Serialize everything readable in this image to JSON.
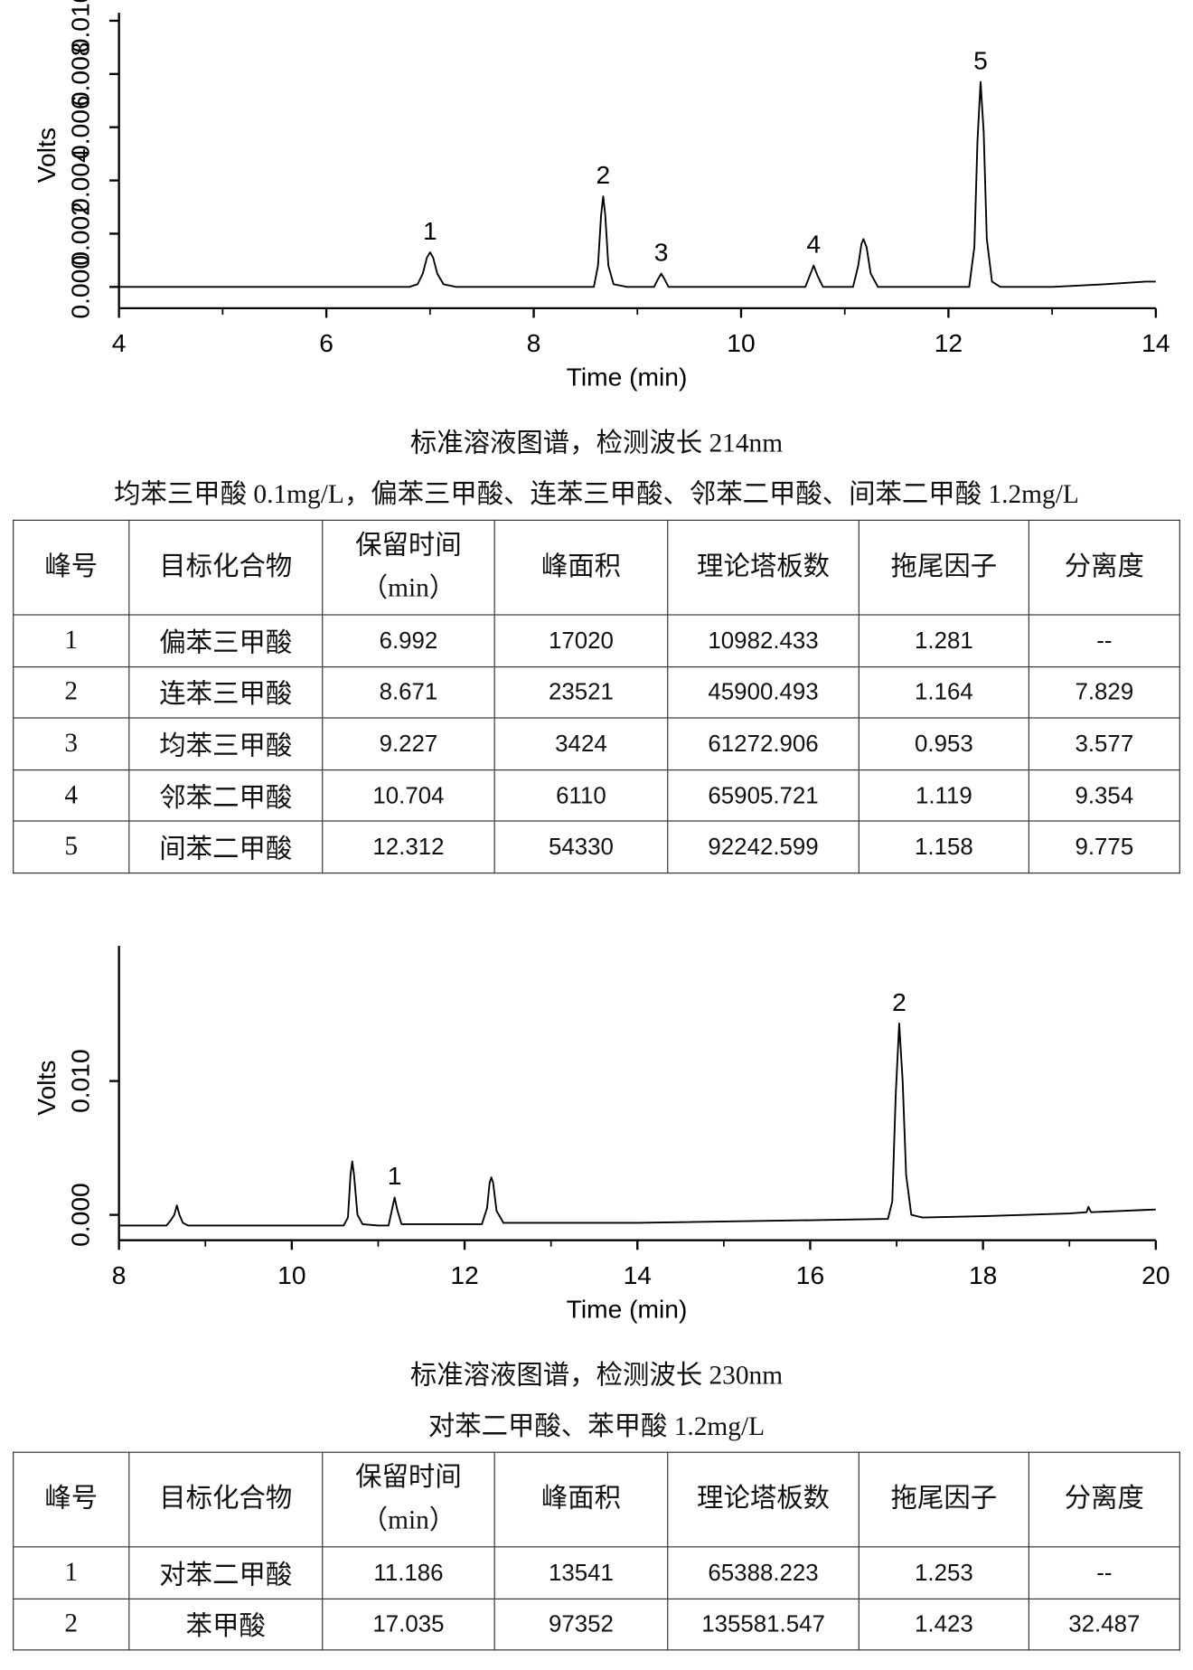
{
  "chart_data": [
    {
      "type": "line",
      "xlabel": "Time (min)",
      "ylabel": "Volts",
      "xlim": [
        4,
        14
      ],
      "xticks": [
        4,
        6,
        8,
        10,
        12,
        14
      ],
      "xminorticks": [
        5,
        7,
        9,
        11,
        13
      ],
      "ylim": [
        -0.0008,
        0.0103
      ],
      "yticks": [
        {
          "value": 0,
          "label": "0.000"
        },
        {
          "value": 0.002,
          "label": "0.002"
        },
        {
          "value": 0.004,
          "label": "0.004"
        },
        {
          "value": 0.006,
          "label": "0.006"
        },
        {
          "value": 0.008,
          "label": "0.008"
        },
        {
          "value": 0.01,
          "label": "0.010"
        }
      ],
      "x": [
        4.0,
        5.0,
        6.0,
        6.8,
        6.88,
        6.93,
        6.97,
        7.0,
        7.03,
        7.07,
        7.13,
        7.25,
        8.0,
        8.58,
        8.62,
        8.65,
        8.67,
        8.69,
        8.72,
        8.77,
        8.9,
        9.16,
        9.2,
        9.23,
        9.26,
        9.3,
        10.0,
        10.62,
        10.66,
        10.7,
        10.74,
        10.79,
        11.08,
        11.13,
        11.16,
        11.18,
        11.21,
        11.25,
        11.32,
        12.0,
        12.2,
        12.25,
        12.28,
        12.31,
        12.34,
        12.37,
        12.42,
        12.5,
        13.0,
        13.5,
        13.9,
        14.0
      ],
      "series": [
        {
          "color": "#000000",
          "values": [
            0.0,
            0.0,
            0.0,
            0.0,
            0.0001,
            0.0005,
            0.0011,
            0.0013,
            0.0011,
            0.0005,
            0.0001,
            0.0,
            0.0,
            0.0,
            0.0008,
            0.0027,
            0.0034,
            0.0027,
            0.0008,
            0.0001,
            0.0,
            0.0,
            0.0003,
            0.0005,
            0.0003,
            0.0,
            0.0,
            0.0,
            0.0004,
            0.0008,
            0.0004,
            0.0,
            0.0,
            0.0008,
            0.0016,
            0.0018,
            0.0015,
            0.0005,
            0.0,
            0.0,
            0.0,
            0.0015,
            0.0055,
            0.0077,
            0.0058,
            0.0018,
            0.0002,
            0.0,
            0.0,
            0.0001,
            0.0002,
            0.0002
          ]
        }
      ],
      "annotations": [
        {
          "text": "1",
          "x": 7.0
        },
        {
          "text": "2",
          "x": 8.67
        },
        {
          "text": "3",
          "x": 9.23
        },
        {
          "text": "4",
          "x": 10.7
        },
        {
          "text": "5",
          "x": 12.31
        }
      ]
    },
    {
      "type": "line",
      "xlabel": "Time (min)",
      "ylabel": "Volts",
      "xlim": [
        8,
        20
      ],
      "xticks": [
        8,
        10,
        12,
        14,
        16,
        18,
        20
      ],
      "xminorticks": [
        9,
        11,
        13,
        15,
        17,
        19
      ],
      "ylim": [
        -0.0019,
        0.0201
      ],
      "yticks": [
        {
          "value": 0,
          "label": "0.000"
        },
        {
          "value": 0.01,
          "label": "0.010"
        }
      ],
      "x": [
        8.0,
        8.55,
        8.6,
        8.64,
        8.67,
        8.7,
        8.74,
        8.8,
        9.2,
        10.0,
        10.6,
        10.65,
        10.68,
        10.7,
        10.72,
        10.76,
        10.82,
        11.0,
        11.12,
        11.16,
        11.19,
        11.22,
        11.27,
        12.2,
        12.26,
        12.29,
        12.31,
        12.33,
        12.37,
        12.45,
        14.0,
        16.0,
        16.9,
        16.95,
        16.99,
        17.03,
        17.07,
        17.11,
        17.17,
        17.3,
        18.0,
        19.0,
        19.2,
        19.22,
        19.25,
        20.0
      ],
      "series": [
        {
          "color": "#000000",
          "values": [
            -0.0008,
            -0.0008,
            -0.0004,
            0.0,
            0.0007,
            0.0,
            -0.0006,
            -0.0008,
            -0.0008,
            -0.0008,
            -0.0008,
            -0.0002,
            0.003,
            0.004,
            0.003,
            0.0,
            -0.0007,
            -0.0008,
            -0.0008,
            0.0004,
            0.0013,
            0.0004,
            -0.0007,
            -0.0007,
            0.0005,
            0.0024,
            0.0028,
            0.0024,
            0.0003,
            -0.0006,
            -0.0006,
            -0.0004,
            -0.0003,
            0.001,
            0.009,
            0.0143,
            0.01,
            0.003,
            0.0,
            -0.0002,
            -0.0001,
            0.0001,
            0.0002,
            0.0006,
            0.0002,
            0.0004
          ]
        }
      ],
      "annotations": [
        {
          "text": "1",
          "x": 11.19
        },
        {
          "text": "2",
          "x": 17.03
        }
      ]
    }
  ],
  "captions": [
    [
      "标准溶液图谱，检测波长 214nm",
      "均苯三甲酸 0.1mg/L，偏苯三甲酸、连苯三甲酸、邻苯二甲酸、间苯二甲酸 1.2mg/L"
    ],
    [
      "标准溶液图谱，检测波长 230nm",
      "对苯二甲酸、苯甲酸 1.2mg/L"
    ]
  ],
  "tables": [
    {
      "header": [
        "峰号",
        "目标化合物",
        "保留时间\n（min）",
        "峰面积",
        "理论塔板数",
        "拖尾因子",
        "分离度"
      ],
      "rows": [
        [
          1,
          "偏苯三甲酸",
          6.992,
          17020,
          10982.433,
          1.281,
          "--"
        ],
        [
          2,
          "连苯三甲酸",
          8.671,
          23521,
          45900.493,
          1.164,
          7.829
        ],
        [
          3,
          "均苯三甲酸",
          9.227,
          3424,
          61272.906,
          0.953,
          3.577
        ],
        [
          4,
          "邻苯二甲酸",
          10.704,
          6110,
          65905.721,
          1.119,
          9.354
        ],
        [
          5,
          "间苯二甲酸",
          12.312,
          54330,
          92242.599,
          1.158,
          9.775
        ]
      ]
    },
    {
      "header": [
        "峰号",
        "目标化合物",
        "保留时间\n（min）",
        "峰面积",
        "理论塔板数",
        "拖尾因子",
        "分离度"
      ],
      "rows": [
        [
          1,
          "对苯二甲酸",
          11.186,
          13541,
          65388.223,
          1.253,
          "--"
        ],
        [
          2,
          "苯甲酸",
          17.035,
          97352,
          135581.547,
          1.423,
          32.487
        ]
      ]
    }
  ]
}
